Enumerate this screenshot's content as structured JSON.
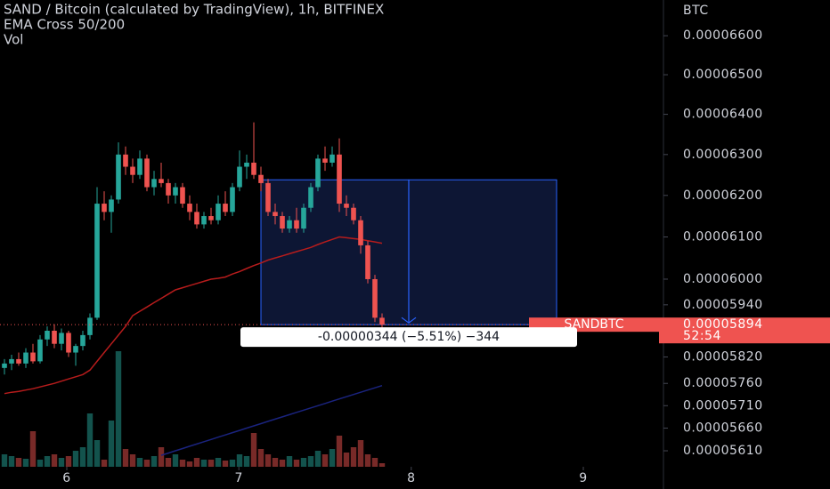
{
  "chart_data": {
    "type": "candlestick",
    "title": "SAND / Bitcoin (calculated by TradingView), 1h, BITFINEX",
    "indicators": [
      "EMA Cross 50/200",
      "Vol"
    ],
    "y_label": "BTC",
    "log_scale": true,
    "ylim": [
      5.575e-05,
      6.693e-05
    ],
    "yticks": [
      {
        "value": 6.6e-05,
        "label": "0.00006600"
      },
      {
        "value": 6.5e-05,
        "label": "0.00006500"
      },
      {
        "value": 6.4e-05,
        "label": "0.00006400"
      },
      {
        "value": 6.3e-05,
        "label": "0.00006300"
      },
      {
        "value": 6.2e-05,
        "label": "0.00006200"
      },
      {
        "value": 6.1e-05,
        "label": "0.00006100"
      },
      {
        "value": 6e-05,
        "label": "0.00006000"
      },
      {
        "value": 5.94e-05,
        "label": "0.00005940"
      },
      {
        "value": 5.82e-05,
        "label": "0.00005820"
      },
      {
        "value": 5.76e-05,
        "label": "0.00005760"
      },
      {
        "value": 5.71e-05,
        "label": "0.00005710"
      },
      {
        "value": 5.66e-05,
        "label": "0.00005660"
      },
      {
        "value": 5.61e-05,
        "label": "0.00005610"
      }
    ],
    "xlim": [
      -0.625,
      92.5
    ],
    "xticks": [
      {
        "value": 8.75,
        "label": "6"
      },
      {
        "value": 32.9,
        "label": "7"
      },
      {
        "value": 57.1,
        "label": "8"
      },
      {
        "value": 81.25,
        "label": "9"
      }
    ],
    "up_color": "#26a69a",
    "down_color": "#ef5350",
    "open": [
      5.795e-05,
      5.805e-05,
      5.815e-05,
      5.805e-05,
      5.83e-05,
      5.81e-05,
      5.86e-05,
      5.88e-05,
      5.85e-05,
      5.875e-05,
      5.83e-05,
      5.845e-05,
      5.87e-05,
      5.91e-05,
      6.18e-05,
      6.16e-05,
      6.19e-05,
      6.3e-05,
      6.27e-05,
      6.25e-05,
      6.29e-05,
      6.22e-05,
      6.24e-05,
      6.23e-05,
      6.2e-05,
      6.22e-05,
      6.18e-05,
      6.16e-05,
      6.13e-05,
      6.15e-05,
      6.14e-05,
      6.18e-05,
      6.16e-05,
      6.22e-05,
      6.27e-05,
      6.28e-05,
      6.25e-05,
      6.23e-05,
      6.16e-05,
      6.15e-05,
      6.12e-05,
      6.14e-05,
      6.12e-05,
      6.17e-05,
      6.22e-05,
      6.29e-05,
      6.28e-05,
      6.3e-05,
      6.18e-05,
      6.17e-05,
      6.14e-05,
      6.08e-05,
      6e-05,
      5.91e-05
    ],
    "high": [
      5.815e-05,
      5.825e-05,
      5.83e-05,
      5.84e-05,
      5.85e-05,
      5.87e-05,
      5.89e-05,
      5.895e-05,
      5.885e-05,
      5.88e-05,
      5.85e-05,
      5.88e-05,
      5.92e-05,
      6.22e-05,
      6.21e-05,
      6.2e-05,
      6.33e-05,
      6.32e-05,
      6.29e-05,
      6.31e-05,
      6.3e-05,
      6.26e-05,
      6.28e-05,
      6.24e-05,
      6.23e-05,
      6.23e-05,
      6.2e-05,
      6.18e-05,
      6.16e-05,
      6.17e-05,
      6.2e-05,
      6.21e-05,
      6.23e-05,
      6.31e-05,
      6.3e-05,
      6.38e-05,
      6.27e-05,
      6.24e-05,
      6.18e-05,
      6.16e-05,
      6.15e-05,
      6.17e-05,
      6.18e-05,
      6.23e-05,
      6.3e-05,
      6.32e-05,
      6.32e-05,
      6.34e-05,
      6.2e-05,
      6.18e-05,
      6.15e-05,
      6.09e-05,
      6.01e-05,
      5.92e-05
    ],
    "low": [
      5.78e-05,
      5.79e-05,
      5.8e-05,
      5.795e-05,
      5.805e-05,
      5.805e-05,
      5.845e-05,
      5.84e-05,
      5.835e-05,
      5.82e-05,
      5.8e-05,
      5.835e-05,
      5.86e-05,
      5.905e-05,
      6.14e-05,
      6.11e-05,
      6.18e-05,
      6.25e-05,
      6.23e-05,
      6.24e-05,
      6.21e-05,
      6.2e-05,
      6.22e-05,
      6.18e-05,
      6.18e-05,
      6.17e-05,
      6.14e-05,
      6.12e-05,
      6.12e-05,
      6.13e-05,
      6.13e-05,
      6.15e-05,
      6.15e-05,
      6.21e-05,
      6.24e-05,
      6.24e-05,
      6.21e-05,
      6.15e-05,
      6.13e-05,
      6.11e-05,
      6.11e-05,
      6.11e-05,
      6.11e-05,
      6.16e-05,
      6.21e-05,
      6.26e-05,
      6.27e-05,
      6.16e-05,
      6.15e-05,
      6.13e-05,
      6.06e-05,
      5.99e-05,
      5.9e-05,
      5.885e-05
    ],
    "close": [
      5.805e-05,
      5.815e-05,
      5.805e-05,
      5.83e-05,
      5.81e-05,
      5.86e-05,
      5.88e-05,
      5.85e-05,
      5.875e-05,
      5.83e-05,
      5.845e-05,
      5.87e-05,
      5.91e-05,
      6.18e-05,
      6.16e-05,
      6.19e-05,
      6.3e-05,
      6.27e-05,
      6.25e-05,
      6.29e-05,
      6.22e-05,
      6.24e-05,
      6.23e-05,
      6.2e-05,
      6.22e-05,
      6.18e-05,
      6.16e-05,
      6.13e-05,
      6.15e-05,
      6.14e-05,
      6.18e-05,
      6.16e-05,
      6.22e-05,
      6.27e-05,
      6.28e-05,
      6.25e-05,
      6.23e-05,
      6.16e-05,
      6.15e-05,
      6.12e-05,
      6.14e-05,
      6.12e-05,
      6.17e-05,
      6.22e-05,
      6.29e-05,
      6.28e-05,
      6.3e-05,
      6.18e-05,
      6.17e-05,
      6.14e-05,
      6.08e-05,
      6e-05,
      5.91e-05,
      5.894e-05
    ],
    "ema_fast": {
      "color": "#b71c1c",
      "values": [
        5.737e-05,
        5.74e-05,
        5.742e-05,
        5.745e-05,
        5.748e-05,
        5.752e-05,
        5.756e-05,
        5.76e-05,
        5.765e-05,
        5.77e-05,
        5.775e-05,
        5.78e-05,
        5.79e-05,
        5.81e-05,
        5.83e-05,
        5.85e-05,
        5.87e-05,
        5.89e-05,
        5.915e-05,
        5.925e-05,
        5.935e-05,
        5.945e-05,
        5.955e-05,
        5.965e-05,
        5.975e-05,
        5.98e-05,
        5.985e-05,
        5.99e-05,
        5.995e-05,
        6e-05,
        6.002e-05,
        6.005e-05,
        6.012e-05,
        6.018e-05,
        6.025e-05,
        6.032e-05,
        6.038e-05,
        6.045e-05,
        6.05e-05,
        6.055e-05,
        6.06e-05,
        6.065e-05,
        6.07e-05,
        6.075e-05,
        6.082e-05,
        6.088e-05,
        6.094e-05,
        6.1e-05,
        6.098e-05,
        6.096e-05,
        6.094e-05,
        6.091e-05,
        6.088e-05,
        6.085e-05
      ]
    },
    "ema_slow": {
      "color": "#1a237e",
      "values": [
        null,
        null,
        null,
        null,
        null,
        null,
        null,
        null,
        null,
        null,
        null,
        null,
        null,
        null,
        null,
        null,
        null,
        null,
        null,
        null,
        null,
        null,
        5.6e-05,
        5.605e-05,
        5.61e-05,
        5.615e-05,
        5.62e-05,
        5.625e-05,
        5.63e-05,
        5.635e-05,
        5.64e-05,
        5.645e-05,
        5.65e-05,
        5.655e-05,
        5.66e-05,
        5.665e-05,
        5.67e-05,
        5.675e-05,
        5.68e-05,
        5.685e-05,
        5.69e-05,
        5.695e-05,
        5.7e-05,
        5.705e-05,
        5.71e-05,
        5.715e-05,
        5.72e-05,
        5.725e-05,
        5.73e-05,
        5.735e-05,
        5.74e-05,
        5.745e-05,
        5.75e-05,
        5.755e-05
      ]
    },
    "volume": [
      14,
      12,
      10,
      9,
      40,
      8,
      12,
      14,
      10,
      12,
      18,
      22,
      60,
      30,
      8,
      52,
      130,
      20,
      14,
      10,
      8,
      12,
      22,
      10,
      14,
      8,
      6,
      10,
      8,
      8,
      10,
      7,
      8,
      14,
      12,
      38,
      20,
      14,
      10,
      8,
      12,
      8,
      10,
      12,
      18,
      14,
      20,
      35,
      16,
      22,
      30,
      14,
      10,
      4
    ],
    "measure": {
      "from_index": 36,
      "to_index": 77.5,
      "from_price": 6.238e-05,
      "to_price": 5.894e-05,
      "label": "-0.00000344 (−5.51%) −344"
    },
    "last_price": {
      "value": 5.894e-05,
      "label": "0.00005894",
      "symbol": "SANDBTC",
      "countdown": "52:54"
    }
  }
}
